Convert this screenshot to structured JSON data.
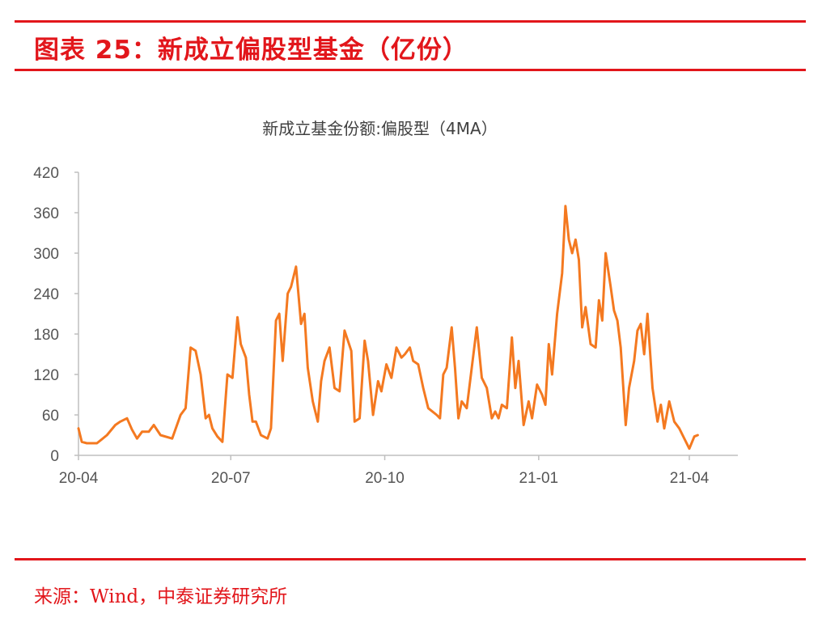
{
  "figure": {
    "title": "图表 25：新成立偏股型基金（亿份）",
    "source": "来源：Wind，中泰证券研究所"
  },
  "colors": {
    "accent": "#e2161b",
    "series_line": "#f47920",
    "text": "#404040",
    "axis": "#bfbfbf"
  },
  "chart_data": {
    "type": "line",
    "title": "新成立基金份额:偏股型（4MA）",
    "xlabel": "",
    "ylabel": "",
    "ylim": [
      0,
      420
    ],
    "yticks": [
      0,
      60,
      120,
      180,
      240,
      300,
      360,
      420
    ],
    "xlim": [
      "2020-04-01",
      "2021-04-30"
    ],
    "xticks": [
      {
        "label": "20-04",
        "date": "2020-04-01"
      },
      {
        "label": "20-07",
        "date": "2020-07-01"
      },
      {
        "label": "20-10",
        "date": "2020-10-01"
      },
      {
        "label": "21-01",
        "date": "2021-01-01"
      },
      {
        "label": "21-04",
        "date": "2021-04-01"
      }
    ],
    "grid": false,
    "legend": "none",
    "series": [
      {
        "x": [
          "2020-04-01",
          "2020-04-03",
          "2020-04-06",
          "2020-04-12",
          "2020-04-18",
          "2020-04-23",
          "2020-04-26",
          "2020-04-30",
          "2020-05-03",
          "2020-05-06",
          "2020-05-09",
          "2020-05-13",
          "2020-05-16",
          "2020-05-20",
          "2020-05-27",
          "2020-06-01",
          "2020-06-04",
          "2020-06-07",
          "2020-06-10",
          "2020-06-13",
          "2020-06-16",
          "2020-06-18",
          "2020-06-20",
          "2020-06-23",
          "2020-06-26",
          "2020-06-29",
          "2020-07-02",
          "2020-07-05",
          "2020-07-07",
          "2020-07-10",
          "2020-07-12",
          "2020-07-14",
          "2020-07-16",
          "2020-07-19",
          "2020-07-23",
          "2020-07-25",
          "2020-07-28",
          "2020-07-30",
          "2020-08-01",
          "2020-08-04",
          "2020-08-06",
          "2020-08-09",
          "2020-08-12",
          "2020-08-14",
          "2020-08-16",
          "2020-08-19",
          "2020-08-22",
          "2020-08-24",
          "2020-08-26",
          "2020-08-29",
          "2020-09-01",
          "2020-09-04",
          "2020-09-07",
          "2020-09-11",
          "2020-09-13",
          "2020-09-16",
          "2020-09-19",
          "2020-09-21",
          "2020-09-24",
          "2020-09-27",
          "2020-09-29",
          "2020-10-02",
          "2020-10-05",
          "2020-10-08",
          "2020-10-11",
          "2020-10-13",
          "2020-10-16",
          "2020-10-18",
          "2020-10-21",
          "2020-10-24",
          "2020-10-27",
          "2020-11-01",
          "2020-11-03",
          "2020-11-05",
          "2020-11-07",
          "2020-11-10",
          "2020-11-12",
          "2020-11-14",
          "2020-11-16",
          "2020-11-19",
          "2020-11-22",
          "2020-11-25",
          "2020-11-28",
          "2020-12-01",
          "2020-12-04",
          "2020-12-06",
          "2020-12-08",
          "2020-12-10",
          "2020-12-13",
          "2020-12-16",
          "2020-12-18",
          "2020-12-20",
          "2020-12-23",
          "2020-12-26",
          "2020-12-28",
          "2020-12-31",
          "2021-01-03",
          "2021-01-05",
          "2021-01-07",
          "2021-01-09",
          "2021-01-12",
          "2021-01-15",
          "2021-01-17",
          "2021-01-19",
          "2021-01-21",
          "2021-01-23",
          "2021-01-25",
          "2021-01-27",
          "2021-01-29",
          "2021-02-01",
          "2021-02-04",
          "2021-02-06",
          "2021-02-08",
          "2021-02-10",
          "2021-02-13",
          "2021-02-15",
          "2021-02-17",
          "2021-02-19",
          "2021-02-22",
          "2021-02-24",
          "2021-02-27",
          "2021-03-01",
          "2021-03-03",
          "2021-03-05",
          "2021-03-07",
          "2021-03-10",
          "2021-03-13",
          "2021-03-15",
          "2021-03-17",
          "2021-03-20",
          "2021-03-23",
          "2021-03-26",
          "2021-03-28",
          "2021-04-01",
          "2021-04-04",
          "2021-04-06"
        ],
        "y": [
          40,
          20,
          18,
          18,
          30,
          45,
          50,
          55,
          38,
          25,
          35,
          35,
          45,
          30,
          25,
          60,
          70,
          160,
          155,
          120,
          55,
          60,
          40,
          28,
          20,
          120,
          115,
          205,
          165,
          145,
          90,
          50,
          50,
          30,
          25,
          40,
          200,
          210,
          140,
          240,
          250,
          280,
          195,
          210,
          130,
          80,
          50,
          110,
          140,
          160,
          100,
          95,
          185,
          155,
          50,
          55,
          170,
          140,
          60,
          110,
          95,
          135,
          115,
          160,
          145,
          150,
          160,
          140,
          135,
          100,
          70,
          60,
          55,
          120,
          130,
          190,
          130,
          55,
          80,
          70,
          130,
          190,
          115,
          100,
          55,
          65,
          55,
          75,
          70,
          175,
          100,
          140,
          45,
          80,
          55,
          105,
          90,
          75,
          165,
          120,
          210,
          270,
          370,
          320,
          300,
          320,
          290,
          190,
          220,
          165,
          160,
          230,
          200,
          300,
          250,
          215,
          200,
          160,
          45,
          100,
          140,
          185,
          195,
          150,
          210,
          100,
          50,
          75,
          40,
          80,
          50,
          40,
          30,
          10,
          28,
          30
        ]
      }
    ]
  }
}
